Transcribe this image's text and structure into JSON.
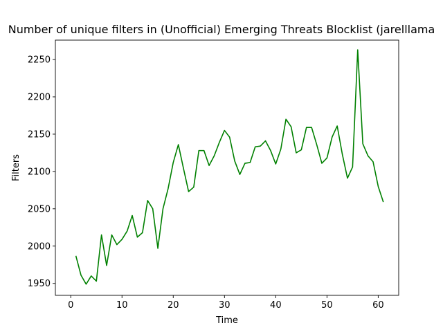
{
  "chart_data": {
    "type": "line",
    "title": "Number of unique filters in (Unofficial) Emerging Threats Blocklist (jarelllama",
    "xlabel": "Time",
    "ylabel": "Filters",
    "xlim": [
      -3,
      64
    ],
    "ylim": [
      1934,
      2276
    ],
    "xticks": [
      0,
      10,
      20,
      30,
      40,
      50,
      60
    ],
    "yticks": [
      1950,
      2000,
      2050,
      2100,
      2150,
      2200,
      2250
    ],
    "grid": false,
    "line_color": "#008000",
    "series": [
      {
        "x": [
          1,
          2,
          3,
          4,
          5,
          6,
          7,
          8,
          9,
          10,
          11,
          12,
          13,
          14,
          15,
          16,
          17,
          18,
          19,
          20,
          21,
          22,
          23,
          24,
          25,
          26,
          27,
          28,
          29,
          30,
          31,
          32,
          33,
          34,
          35,
          36,
          37,
          38,
          39,
          40,
          41,
          42,
          43,
          44,
          45,
          46,
          47,
          48,
          49,
          50,
          51,
          52,
          53,
          54,
          55,
          56,
          57,
          58,
          59,
          60,
          61
        ],
        "values": [
          1987,
          1961,
          1949,
          1960,
          1953,
          2015,
          1974,
          2015,
          2002,
          2009,
          2020,
          2041,
          2012,
          2018,
          2061,
          2050,
          1997,
          2050,
          2077,
          2112,
          2136,
          2104,
          2073,
          2079,
          2128,
          2128,
          2108,
          2121,
          2139,
          2155,
          2146,
          2114,
          2096,
          2111,
          2112,
          2133,
          2134,
          2141,
          2128,
          2110,
          2130,
          2170,
          2160,
          2125,
          2129,
          2159,
          2159,
          2136,
          2111,
          2118,
          2146,
          2161,
          2123,
          2091,
          2106,
          2263,
          2137,
          2121,
          2113,
          2080,
          2059
        ]
      }
    ]
  }
}
